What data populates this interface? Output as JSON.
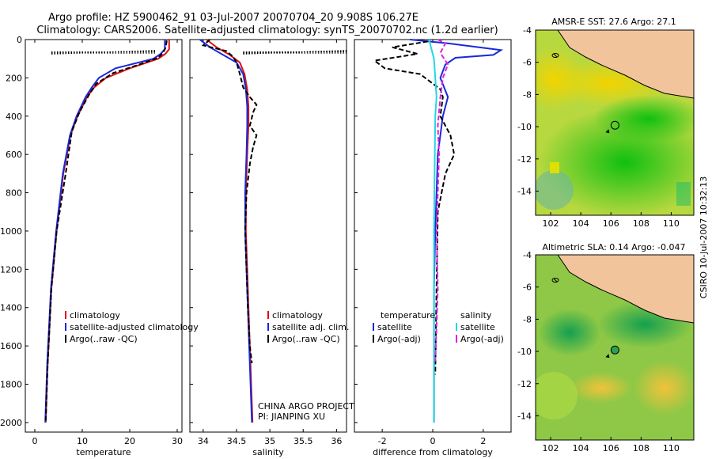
{
  "header": {
    "line1": "Argo profile: HZ 5900462_91 03-Jul-2007 20070704_20 9.908S 106.27E",
    "line2": "Climatology: CARS2006. Satellite-adjusted climatology: synTS_20070702.nc (1.2d earlier)"
  },
  "side_stamp": "CSIRO 10-Jul-2007 10:32:13",
  "colors": {
    "clim": "#e01010",
    "sat": "#1a28d8",
    "argo": "#000000",
    "sat_sal": "#22d8e0",
    "argo_sal": "#e020e0",
    "land": "#f2c49c"
  },
  "chart_data": [
    {
      "type": "line",
      "id": "temperature",
      "xlabel": "temperature",
      "ylabel": "",
      "xlim": [
        -2,
        31
      ],
      "ylim": [
        2050,
        0
      ],
      "xticks": [
        0,
        10,
        20,
        30
      ],
      "yticks": [
        0,
        200,
        400,
        600,
        800,
        1000,
        1200,
        1400,
        1600,
        1800,
        2000
      ],
      "xtick_labels": [
        "0",
        "10",
        "20",
        "30"
      ],
      "ytick_labels": [
        "0",
        "200",
        "400",
        "600",
        "800",
        "1000",
        "1200",
        "1400",
        "1600",
        "1800",
        "2000"
      ],
      "legend": [
        "climatology",
        "satellite-adjusted climatology",
        "Argo(..raw -QC)"
      ],
      "series": [
        {
          "name": "climatology",
          "color": "#e01010",
          "style": "solid",
          "x": [
            28.3,
            28.3,
            27.5,
            26,
            20,
            15,
            12.5,
            11,
            9,
            7.5,
            6,
            4.6,
            3.5,
            2.7,
            2.3
          ],
          "y": [
            0,
            50,
            75,
            100,
            150,
            200,
            250,
            300,
            400,
            500,
            700,
            1000,
            1300,
            1700,
            2000
          ]
        },
        {
          "name": "satellite",
          "color": "#1a28d8",
          "style": "solid",
          "x": [
            27.4,
            27.4,
            26.5,
            25,
            17,
            13.5,
            12,
            10.7,
            8.8,
            7.4,
            5.9,
            4.5,
            3.4,
            2.6,
            2.2
          ],
          "y": [
            0,
            50,
            75,
            100,
            150,
            200,
            250,
            300,
            400,
            500,
            700,
            1000,
            1300,
            1700,
            2000
          ]
        },
        {
          "name": "Argo",
          "color": "#000000",
          "style": "dashed",
          "x": [
            27.8,
            27.6,
            27,
            26,
            22,
            16.5,
            13,
            11.6,
            9.4,
            7.8,
            6.5,
            4.6,
            3.5,
            2.7,
            2.3
          ],
          "y": [
            5,
            40,
            70,
            95,
            130,
            175,
            230,
            280,
            380,
            480,
            700,
            1000,
            1300,
            1700,
            1990
          ]
        },
        {
          "name": "Argo raw QC",
          "color": "#000000",
          "style": "dotted",
          "x": [
            3.5,
            25.5
          ],
          "y": [
            70,
            70
          ]
        }
      ]
    },
    {
      "type": "line",
      "id": "salinity",
      "xlabel": "salinity",
      "xlim": [
        33.8,
        36.15
      ],
      "ylim": [
        2050,
        0
      ],
      "xticks": [
        34,
        34.5,
        35,
        35.5,
        36
      ],
      "xtick_labels": [
        "34",
        "34.5",
        "35",
        "35.5",
        "36"
      ],
      "legend": [
        "climatology",
        "satellite adj. clim.",
        "Argo(..raw -QC)"
      ],
      "annotation": [
        "CHINA ARGO PROJECT",
        "PI: JIANPING XU"
      ],
      "series": [
        {
          "name": "climatology",
          "color": "#e01010",
          "style": "solid",
          "x": [
            34.05,
            34.2,
            34.4,
            34.55,
            34.62,
            34.66,
            34.68,
            34.68,
            34.66,
            34.64,
            34.64,
            34.66,
            34.68,
            34.7,
            34.72,
            34.74
          ],
          "y": [
            0,
            40,
            80,
            120,
            180,
            260,
            350,
            450,
            600,
            800,
            1000,
            1200,
            1400,
            1600,
            1800,
            2000
          ]
        },
        {
          "name": "satellite",
          "color": "#1a28d8",
          "style": "solid",
          "x": [
            33.95,
            34.1,
            34.3,
            34.5,
            34.6,
            34.64,
            34.66,
            34.66,
            34.65,
            34.63,
            34.63,
            34.65,
            34.67,
            34.69,
            34.71,
            34.73
          ],
          "y": [
            0,
            40,
            80,
            120,
            180,
            260,
            350,
            450,
            600,
            800,
            1000,
            1200,
            1400,
            1600,
            1800,
            2000
          ]
        },
        {
          "name": "Argo",
          "color": "#000000",
          "style": "dashed",
          "x": [
            34.1,
            34.0,
            34.35,
            34.45,
            34.5,
            34.55,
            34.6,
            34.7,
            34.8,
            34.75,
            34.7,
            34.8,
            34.75,
            34.7,
            34.65,
            34.63,
            34.65,
            34.67,
            34.7,
            34.73
          ],
          "y": [
            0,
            30,
            60,
            90,
            120,
            180,
            250,
            300,
            340,
            380,
            450,
            500,
            560,
            650,
            800,
            1000,
            1200,
            1400,
            1600,
            1690
          ]
        },
        {
          "name": "Argo raw QC",
          "color": "#000000",
          "style": "dotted",
          "x": [
            34.6,
            36.15
          ],
          "y": [
            70,
            70
          ]
        }
      ]
    },
    {
      "type": "line",
      "id": "difference",
      "xlabel": "difference from climatology",
      "xlim": [
        -3.1,
        3.1
      ],
      "ylim": [
        2050,
        0
      ],
      "xticks": [
        -2,
        0,
        2
      ],
      "xtick_labels": [
        "-2",
        "0",
        "2"
      ],
      "legend_temp": [
        "temperature",
        "satellite",
        "Argo(-adj)"
      ],
      "legend_sal": [
        "salinity",
        "satellite",
        "Argo(-adj)"
      ],
      "series": [
        {
          "name": "temp satellite",
          "color": "#1a28d8",
          "style": "solid",
          "x": [
            -0.9,
            0.6,
            2.7,
            2.4,
            0.9,
            0.5,
            0.3,
            0.6,
            0.4,
            0.2,
            0.15,
            0.1,
            0.05,
            0.05,
            0.05
          ],
          "y": [
            0,
            20,
            55,
            80,
            95,
            130,
            200,
            300,
            400,
            600,
            800,
            1000,
            1300,
            1600,
            2000
          ]
        },
        {
          "name": "temp Argo",
          "color": "#000000",
          "style": "dashed",
          "x": [
            -0.2,
            -1.6,
            -0.6,
            -2.3,
            -1.9,
            -0.5,
            -0.1,
            0.3,
            0.4,
            0.3,
            0.7,
            0.85,
            0.5,
            0.2,
            0.15,
            0.1
          ],
          "y": [
            10,
            40,
            75,
            110,
            150,
            180,
            220,
            260,
            300,
            400,
            500,
            600,
            700,
            900,
            1300,
            1750
          ]
        },
        {
          "name": "sal satellite",
          "color": "#22d8e0",
          "style": "solid",
          "x": [
            -0.15,
            -0.05,
            0.05,
            0.1,
            0.15,
            0.1,
            0.08,
            0.05,
            0.05,
            0.05
          ],
          "y": [
            0,
            50,
            100,
            200,
            300,
            400,
            600,
            1000,
            1500,
            2000
          ]
        },
        {
          "name": "sal Argo",
          "color": "#e020e0",
          "style": "dashed",
          "x": [
            0.2,
            0.5,
            0.3,
            0.6,
            0.4,
            0.3,
            0.2,
            0.25,
            0.2,
            0.15,
            0.2,
            0.15,
            0.1
          ],
          "y": [
            0,
            20,
            70,
            130,
            200,
            300,
            450,
            600,
            800,
            1000,
            1300,
            1500,
            1680
          ]
        }
      ]
    },
    {
      "type": "heatmap",
      "id": "sst_map",
      "title": "AMSR-E SST: 27.6 Argo: 27.1",
      "xlim": [
        101,
        111.5
      ],
      "ylim": [
        -15.5,
        -4
      ],
      "xticks": [
        102,
        104,
        106,
        108,
        110
      ],
      "yticks": [
        -4,
        -6,
        -8,
        -10,
        -12,
        -14
      ],
      "xtick_labels": [
        "102",
        "104",
        "106",
        "108",
        "110"
      ],
      "ytick_labels": [
        "-4",
        "-6",
        "-8",
        "-10",
        "-12",
        "-14"
      ],
      "float_position": [
        106.27,
        -9.908
      ]
    },
    {
      "type": "heatmap",
      "id": "sla_map",
      "title": "Altimetric SLA: 0.14 Argo: -0.047",
      "xlim": [
        101,
        111.5
      ],
      "ylim": [
        -15.5,
        -4
      ],
      "xticks": [
        102,
        104,
        106,
        108,
        110
      ],
      "yticks": [
        -4,
        -6,
        -8,
        -10,
        -12,
        -14
      ],
      "xtick_labels": [
        "102",
        "104",
        "106",
        "108",
        "110"
      ],
      "ytick_labels": [
        "-4",
        "-6",
        "-8",
        "-10",
        "-12",
        "-14"
      ],
      "float_position": [
        106.27,
        -9.908
      ]
    }
  ]
}
